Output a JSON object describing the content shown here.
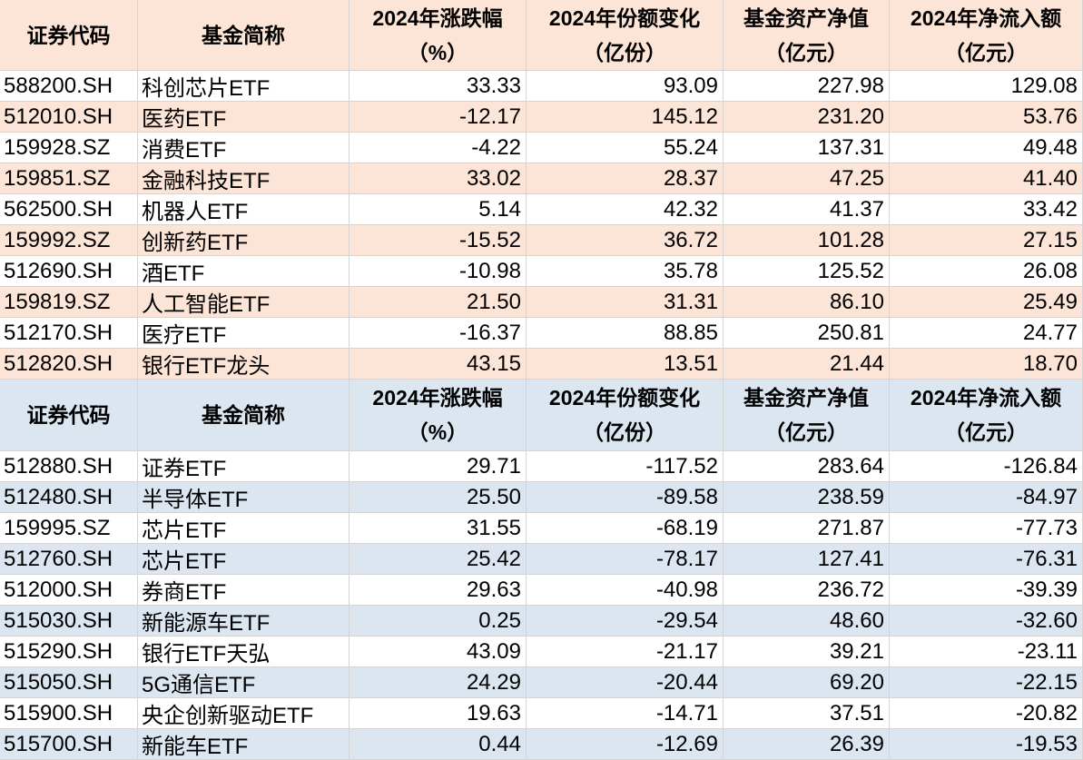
{
  "tables": [
    {
      "header": [
        [
          "证券代码"
        ],
        [
          "基金简称"
        ],
        [
          "2024年涨跌幅",
          "（%）"
        ],
        [
          "2024年份额变化",
          "（亿份）"
        ],
        [
          "基金资产净值",
          "（亿元）"
        ],
        [
          "2024年净流入额",
          "（亿元）"
        ]
      ],
      "rows": [
        [
          "588200.SH",
          "科创芯片ETF",
          "33.33",
          "93.09",
          "227.98",
          "129.08"
        ],
        [
          "512010.SH",
          "医药ETF",
          "-12.17",
          "145.12",
          "231.20",
          "53.76"
        ],
        [
          "159928.SZ",
          "消费ETF",
          "-4.22",
          "55.24",
          "137.31",
          "49.48"
        ],
        [
          "159851.SZ",
          "金融科技ETF",
          "33.02",
          "28.37",
          "47.25",
          "41.40"
        ],
        [
          "562500.SH",
          "机器人ETF",
          "5.14",
          "42.32",
          "41.37",
          "33.42"
        ],
        [
          "159992.SZ",
          "创新药ETF",
          "-15.52",
          "36.72",
          "101.28",
          "27.15"
        ],
        [
          "512690.SH",
          "酒ETF",
          "-10.98",
          "35.78",
          "125.52",
          "26.08"
        ],
        [
          "159819.SZ",
          "人工智能ETF",
          "21.50",
          "31.31",
          "86.10",
          "25.49"
        ],
        [
          "512170.SH",
          "医疗ETF",
          "-16.37",
          "88.85",
          "250.81",
          "24.77"
        ],
        [
          "512820.SH",
          "银行ETF龙头",
          "43.15",
          "13.51",
          "21.44",
          "18.70"
        ]
      ]
    },
    {
      "header": [
        [
          "证券代码"
        ],
        [
          "基金简称"
        ],
        [
          "2024年涨跌幅",
          "（%）"
        ],
        [
          "2024年份额变化",
          "（亿份）"
        ],
        [
          "基金资产净值",
          "（亿元）"
        ],
        [
          "2024年净流入额",
          "（亿元）"
        ]
      ],
      "rows": [
        [
          "512880.SH",
          "证券ETF",
          "29.71",
          "-117.52",
          "283.64",
          "-126.84"
        ],
        [
          "512480.SH",
          "半导体ETF",
          "25.50",
          "-89.58",
          "238.59",
          "-84.97"
        ],
        [
          "159995.SZ",
          "芯片ETF",
          "31.55",
          "-68.19",
          "271.87",
          "-77.73"
        ],
        [
          "512760.SH",
          "芯片ETF",
          "25.42",
          "-78.17",
          "127.41",
          "-76.31"
        ],
        [
          "512000.SH",
          "券商ETF",
          "29.63",
          "-40.98",
          "236.72",
          "-39.39"
        ],
        [
          "515030.SH",
          "新能源车ETF",
          "0.25",
          "-29.54",
          "48.60",
          "-32.60"
        ],
        [
          "515290.SH",
          "银行ETF天弘",
          "43.09",
          "-21.17",
          "39.21",
          "-23.11"
        ],
        [
          "515050.SH",
          "5G通信ETF",
          "24.29",
          "-20.44",
          "69.20",
          "-22.15"
        ],
        [
          "515900.SH",
          "央企创新驱动ETF",
          "19.63",
          "-14.71",
          "37.51",
          "-20.82"
        ],
        [
          "515700.SH",
          "新能车ETF",
          "0.44",
          "-12.69",
          "26.39",
          "-19.53"
        ]
      ]
    }
  ]
}
